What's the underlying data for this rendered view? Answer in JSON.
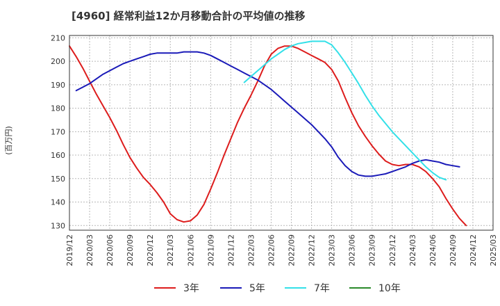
{
  "chart_data": {
    "type": "line",
    "title": "[4960]  経常利益12か月移動合計の平均値の推移",
    "ylabel": "(百万円)",
    "xlabel": "",
    "ylim": [
      128,
      211
    ],
    "yticks": [
      130,
      140,
      150,
      160,
      170,
      180,
      190,
      200,
      210
    ],
    "xlim": [
      "2019-12",
      "2025-03"
    ],
    "x_tick_labels": [
      "2019/12",
      "2020/03",
      "2020/06",
      "2020/09",
      "2020/12",
      "2021/03",
      "2021/06",
      "2021/09",
      "2021/12",
      "2022/03",
      "2022/06",
      "2022/09",
      "2022/12",
      "2023/03",
      "2023/06",
      "2023/09",
      "2023/12",
      "2024/03",
      "2024/06",
      "2024/09",
      "2024/12",
      "2025/03"
    ],
    "grid": "both-dashed",
    "legend_placement": "bottom",
    "colors": {
      "3年": "#dd1c1c",
      "5年": "#1a1ab8",
      "7年": "#33e0e8",
      "10年": "#2a8a2a"
    },
    "series": [
      {
        "name": "3年",
        "start": "2019-12",
        "values": [
          206.5,
          202,
          197,
          191.5,
          186,
          181,
          176,
          170.5,
          164.5,
          159,
          154.5,
          150.5,
          147.5,
          144,
          140,
          135,
          132.5,
          131.5,
          132,
          134.5,
          139,
          145.5,
          152.5,
          160,
          167,
          174,
          180,
          185.5,
          191.5,
          198,
          203,
          205.5,
          206.5,
          206.5,
          205.5,
          204,
          202.5,
          201,
          199.5,
          196.5,
          191.5,
          184.5,
          178,
          172.5,
          168,
          164,
          160.5,
          157.5,
          156,
          155.5,
          156,
          156,
          155,
          153,
          150,
          146.5,
          141.5,
          137,
          133,
          130
        ]
      },
      {
        "name": "5年",
        "start": "2020-01",
        "values": [
          187.5,
          189,
          190.5,
          192.5,
          194.5,
          196,
          197.5,
          199,
          200,
          201,
          202,
          203,
          203.5,
          203.5,
          203.5,
          203.5,
          204,
          204,
          204,
          203.5,
          202.5,
          201,
          199.5,
          198,
          196.5,
          195,
          193.5,
          192,
          190,
          188,
          185.5,
          183,
          180.5,
          178,
          175.5,
          173,
          170,
          167,
          163.5,
          159,
          155.5,
          153,
          151.5,
          151,
          151,
          151.5,
          152,
          153,
          154,
          155,
          156.5,
          157.5,
          158,
          157.5,
          157,
          156,
          155.5,
          155
        ]
      },
      {
        "name": "7年",
        "start": "2022-02",
        "values": [
          191,
          193.5,
          196,
          198.5,
          201,
          203,
          205,
          206.5,
          207.5,
          208,
          208.5,
          208.5,
          208.5,
          207,
          203.5,
          199.5,
          195,
          190.5,
          185.5,
          181,
          177,
          173.5,
          170,
          167,
          164,
          161,
          158,
          155,
          152.5,
          150.5,
          149.5
        ]
      },
      {
        "name": "10年",
        "start": "2024-12",
        "values": []
      }
    ]
  }
}
